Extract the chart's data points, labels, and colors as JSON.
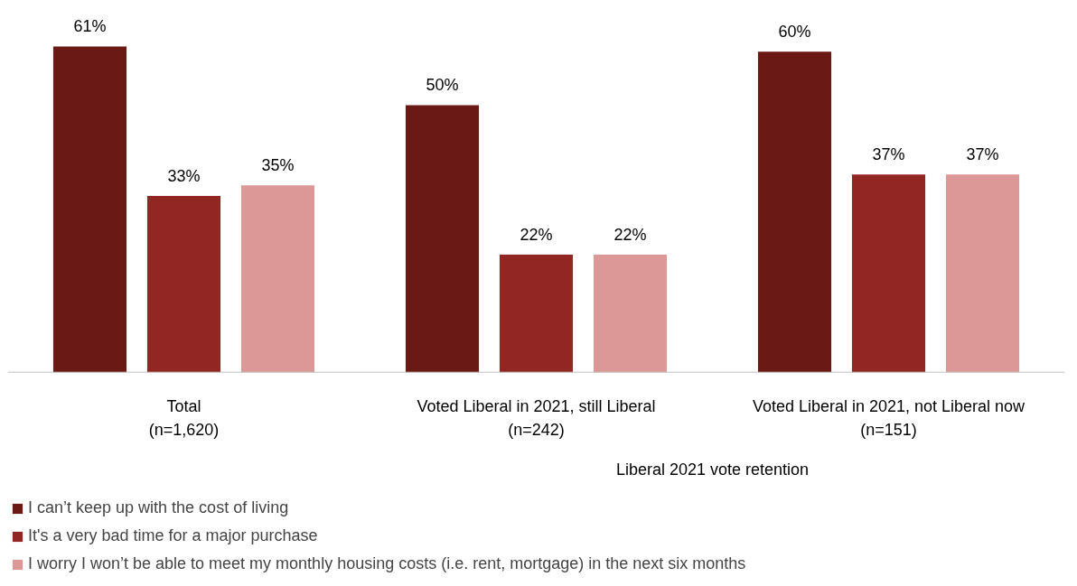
{
  "chart_data": {
    "type": "bar",
    "categories": [
      "Total\n(n=1,620)",
      "Voted Liberal in 2021, still Liberal\n(n=242)",
      "Voted Liberal in 2021, not Liberal now\n(n=151)"
    ],
    "series": [
      {
        "name": "I can’t keep up with the cost of living",
        "color": "#6b1914",
        "values": [
          61,
          50,
          60
        ],
        "value_labels": [
          "61%",
          "50%",
          "60%"
        ]
      },
      {
        "name": "It's a very bad time for a major purchase",
        "color": "#922622",
        "values": [
          33,
          22,
          37
        ],
        "value_labels": [
          "33%",
          "22%",
          "37%"
        ]
      },
      {
        "name": "I worry I won’t be able to meet my monthly housing costs (i.e. rent, mortgage) in the next six months",
        "color": "#dc9896",
        "values": [
          35,
          22,
          37
        ],
        "value_labels": [
          "35%",
          "22%",
          "37%"
        ]
      }
    ],
    "annotations": [
      "Liberal 2021 vote retention"
    ],
    "legend": "bottom"
  }
}
